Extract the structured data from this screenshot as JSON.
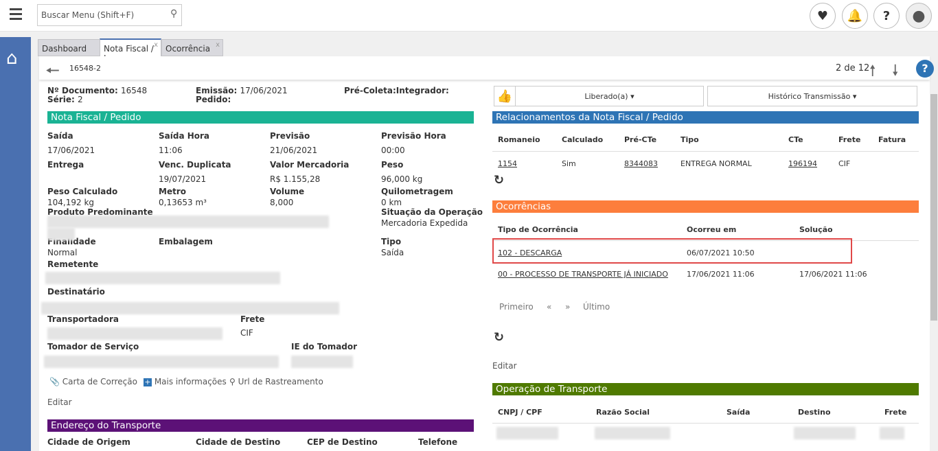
{
  "topbar": {
    "search_placeholder": "Buscar Menu  (Shift+F)"
  },
  "tabs": [
    {
      "label": "Dashboard"
    },
    {
      "label": "Nota Fiscal / I"
    },
    {
      "label": "Ocorrência"
    }
  ],
  "tab_close": "x",
  "header": {
    "doc_id": "16548-2",
    "pager": "2 de 12"
  },
  "doc": {
    "numero_label": "Nº Documento:",
    "numero": "16548",
    "serie_label": "Série:",
    "serie": "2",
    "emissao_label": "Emissão:",
    "emissao": "17/06/2021",
    "pedido_label": "Pedido:",
    "precoleta_label": "Pré-Coleta:Integrador:"
  },
  "nf": {
    "title": "Nota Fiscal / Pedido",
    "fields": [
      {
        "label": "Saída",
        "value": "17/06/2021"
      },
      {
        "label": "Saída Hora",
        "value": "11:06"
      },
      {
        "label": "Previsão",
        "value": "21/06/2021"
      },
      {
        "label": "Previsão Hora",
        "value": "00:00"
      },
      {
        "label": "Entrega",
        "value": ""
      },
      {
        "label": "Venc. Duplicata",
        "value": "19/07/2021"
      },
      {
        "label": "Valor Mercadoria",
        "value": "R$ 1.155,28"
      },
      {
        "label": "Peso",
        "value": "96,000 kg"
      },
      {
        "label": "Peso Calculado",
        "value": "104,192 kg"
      },
      {
        "label": "Metro",
        "value": "0,13653 m³"
      },
      {
        "label": "Volume",
        "value": "8,000"
      },
      {
        "label": "Quilometragem",
        "value": "0 km"
      },
      {
        "label": "Produto Predominante"
      },
      {
        "label": "Situação da Operação",
        "value": "Mercadoria Expedida"
      },
      {
        "label": "Finalidade",
        "value": "Normal"
      },
      {
        "label": "Embalagem"
      },
      {
        "label": "Tipo",
        "value": "Saída"
      },
      {
        "label": "Remetente"
      },
      {
        "label": "Destinatário"
      },
      {
        "label": "Transportadora"
      },
      {
        "label": "Frete",
        "value": "CIF"
      },
      {
        "label": "Tomador de Serviço"
      },
      {
        "label": "IE do Tomador"
      }
    ],
    "links": {
      "carta": "Carta de Correção",
      "mais": "Mais informações",
      "url": "Url de Rastreamento"
    },
    "editar": "Editar"
  },
  "endereco": {
    "title": "Endereço do Transporte",
    "cols": [
      "Cidade de Origem",
      "Cidade de Destino",
      "CEP de Destino",
      "Telefone"
    ]
  },
  "actions": {
    "liberado": "Liberado(a)",
    "historico": "Histórico Transmissão"
  },
  "rel": {
    "title": "Relacionamentos da Nota Fiscal / Pedido",
    "cols": [
      "Romaneio",
      "Calculado",
      "Pré-CTe",
      "Tipo",
      "CTe",
      "Frete",
      "Fatura"
    ],
    "row": [
      "1154",
      "Sim",
      "8344083",
      "ENTREGA NORMAL",
      "196194",
      "CIF",
      ""
    ]
  },
  "oc": {
    "title": "Ocorrências",
    "cols": [
      "Tipo de Ocorrência",
      "Ocorreu em",
      "Solução"
    ],
    "rows": [
      [
        "102 - DESCARGA",
        "06/07/2021 10:50",
        ""
      ],
      [
        "00 - PROCESSO DE TRANSPORTE JÁ INICIADO",
        "17/06/2021 11:06",
        "17/06/2021 11:06"
      ]
    ],
    "pager": {
      "first": "Primeiro",
      "prev": "«",
      "next": "»",
      "last": "Último"
    },
    "editar": "Editar"
  },
  "op": {
    "title": "Operação de Transporte",
    "cols": [
      "CNPJ / CPF",
      "Razão Social",
      "Saída",
      "Destino",
      "Frete"
    ]
  },
  "colors": {
    "nf": "#1ab394",
    "rel": "#2e74b5",
    "oc": "#fd7e3c",
    "op": "#4f7a00",
    "end": "#5c1177",
    "sidebar": "#4a70b0",
    "highlight": "#e04848"
  }
}
